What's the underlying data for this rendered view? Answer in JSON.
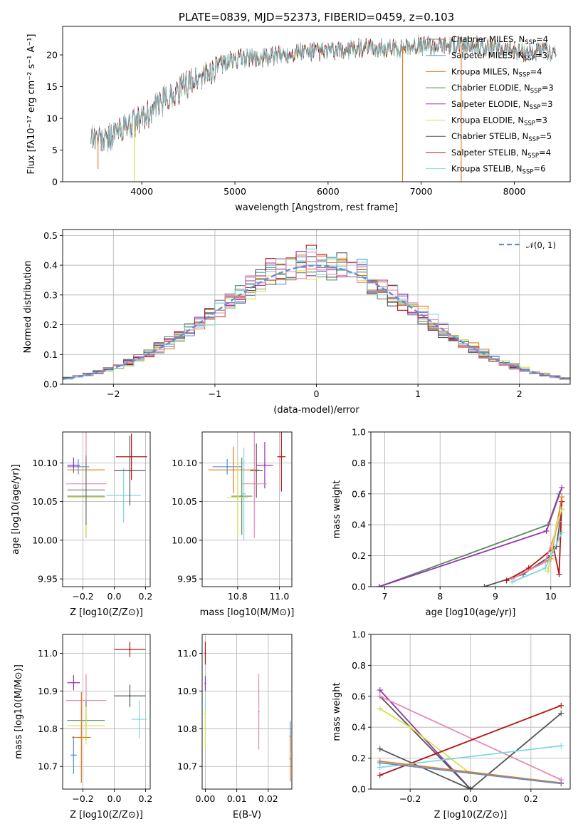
{
  "page_title": "PLATE=0839, MJD=52373, FIBERID=0459, z=0.103",
  "colors": {
    "chabrier_miles": "#808080",
    "salpeter_miles": "#5a8fd8",
    "kroupa_miles": "#e07b20",
    "chabrier_elodie": "#5a8a5a",
    "salpeter_elodie": "#9932b0",
    "kroupa_elodie": "#d8e050",
    "chabrier_stelib": "#555555",
    "salpeter_stelib": "#b01818",
    "kroupa_stelib": "#7fd8e0",
    "pink": "#e888b8",
    "n01": "#5a8fd8"
  },
  "chart_data": [
    {
      "id": "spectrum",
      "type": "line",
      "title": "PLATE=0839, MJD=52373, FIBERID=0459, z=0.103",
      "xlabel": "wavelength [Angstrom, rest frame]",
      "ylabel": "Flux [fλ10⁻¹⁷ erg cm⁻² s⁻¹ A⁻¹]",
      "xlim": [
        3150,
        8600
      ],
      "ylim": [
        0,
        24.5
      ],
      "xticks": [
        "4000",
        "5000",
        "6000",
        "7000",
        "8000"
      ],
      "yticks": [
        "0",
        "5",
        "10",
        "15",
        "20"
      ],
      "legend_position": "right",
      "legend": [
        "Chabrier MILES, N_SSP=4",
        "Salpeter MILES, N_SSP=3",
        "Kroupa MILES, N_SSP=4",
        "Chabrier ELODIE, N_SSP=3",
        "Salpeter ELODIE, N_SSP=3",
        "Kroupa ELODIE, N_SSP=3",
        "Chabrier STELIB, N_SSP=5",
        "Salpeter STELIB, N_SSP=4",
        "Kroupa STELIB, N_SSP=6"
      ],
      "legend_parts": [
        [
          "Chabrier MILES, N",
          "SSP",
          "=4"
        ],
        [
          "Salpeter MILES, N",
          "SSP",
          "=3"
        ],
        [
          "Kroupa MILES, N",
          "SSP",
          "=4"
        ],
        [
          "Chabrier ELODIE, N",
          "SSP",
          "=3"
        ],
        [
          "Salpeter ELODIE, N",
          "SSP",
          "=3"
        ],
        [
          "Kroupa ELODIE, N",
          "SSP",
          "=3"
        ],
        [
          "Chabrier STELIB, N",
          "SSP",
          "=5"
        ],
        [
          "Salpeter STELIB, N",
          "SSP",
          "=4"
        ],
        [
          "Kroupa STELIB, N",
          "SSP",
          "=6"
        ]
      ],
      "continuum_points": [
        [
          3450,
          7.5
        ],
        [
          3600,
          6.5
        ],
        [
          3800,
          8.5
        ],
        [
          3950,
          9.5
        ],
        [
          4100,
          11
        ],
        [
          4300,
          13.5
        ],
        [
          4500,
          15.5
        ],
        [
          4700,
          17
        ],
        [
          4900,
          19
        ],
        [
          5100,
          19.5
        ],
        [
          5300,
          19.5
        ],
        [
          5500,
          20
        ],
        [
          5700,
          20.5
        ],
        [
          5900,
          20.5
        ],
        [
          6100,
          20.5
        ],
        [
          6300,
          21
        ],
        [
          6500,
          21
        ],
        [
          6700,
          21
        ],
        [
          6900,
          21.5
        ],
        [
          7100,
          21.5
        ],
        [
          7300,
          21.5
        ],
        [
          7500,
          21.5
        ],
        [
          7700,
          21
        ],
        [
          7900,
          21
        ],
        [
          8100,
          20.5
        ],
        [
          8300,
          20.5
        ],
        [
          8450,
          20.5
        ]
      ],
      "drop_features": [
        {
          "series": "kroupa_elodie",
          "wavelength": 3920,
          "min_flux": 0
        },
        {
          "series": "kroupa_miles",
          "wavelength": 6800,
          "min_flux": 0
        },
        {
          "series": "kroupa_miles",
          "wavelength": 7430,
          "min_flux": 0
        },
        {
          "series": "kroupa_miles",
          "wavelength": 3530,
          "min_flux": 2
        }
      ]
    },
    {
      "id": "residual_hist",
      "type": "histogram",
      "xlabel": "(data-model)/error",
      "ylabel": "Normed distribution",
      "xlim": [
        -2.5,
        2.5
      ],
      "ylim": [
        0,
        0.52
      ],
      "xticks": [
        "−2",
        "−1",
        "0",
        "1",
        "2"
      ],
      "yticks": [
        "0.0",
        "0.1",
        "0.2",
        "0.3",
        "0.4",
        "0.5"
      ],
      "legend": [
        "𝒩(0, 1)"
      ],
      "legend_position": "top-right",
      "bin_width": 0.1,
      "reference_curve": "normal(0,1)"
    },
    {
      "id": "z_vs_age",
      "type": "scatter",
      "xlabel": "Z [log10(Z/Z⊙)]",
      "ylabel": "age [log10(age/yr)]",
      "xlim": [
        -0.33,
        0.23
      ],
      "ylim": [
        9.94,
        10.14
      ],
      "xticks": [
        "−0.2",
        "0.0",
        "0.2"
      ],
      "yticks": [
        "9.95",
        "10.00",
        "10.05",
        "10.10"
      ],
      "points": [
        {
          "color": "kroupa_stelib",
          "x": 0.06,
          "xerr": 0.11,
          "y": 10.058,
          "yerr": 0.035
        },
        {
          "color": "chabrier_stelib",
          "x": 0.1,
          "xerr": 0.1,
          "y": 10.09,
          "yerr": 0.045
        },
        {
          "color": "salpeter_stelib",
          "x": 0.11,
          "xerr": 0.1,
          "y": 10.108,
          "yerr": 0.03
        },
        {
          "color": "salpeter_miles",
          "x": -0.23,
          "xerr": 0.07,
          "y": 10.095,
          "yerr": 0.01
        },
        {
          "color": "salpeter_elodie",
          "x": -0.26,
          "xerr": 0.04,
          "y": 10.097,
          "yerr": 0.01
        },
        {
          "color": "kroupa_miles",
          "x": -0.18,
          "xerr": 0.12,
          "y": 10.091,
          "yerr": 0.01
        },
        {
          "color": "pink",
          "x": -0.18,
          "xerr": 0.13,
          "y": 10.073,
          "yerr": 0.07
        },
        {
          "color": "chabrier_elodie",
          "x": -0.18,
          "xerr": 0.12,
          "y": 10.057,
          "yerr": 0.05
        },
        {
          "color": "kroupa_elodie",
          "x": -0.18,
          "xerr": 0.12,
          "y": 10.055,
          "yerr": 0.05
        },
        {
          "color": "chabrier_miles",
          "x": -0.18,
          "xerr": 0.12,
          "y": 10.065,
          "yerr": 0.045
        }
      ]
    },
    {
      "id": "mass_vs_age",
      "type": "scatter",
      "xlabel": "mass [log10(M/M⊙)]",
      "ylabel": "",
      "xlim": [
        10.63,
        11.06
      ],
      "ylim": [
        9.94,
        10.14
      ],
      "xticks": [
        "10.8",
        "11.0"
      ],
      "yticks": [
        "9.95",
        "10.00",
        "10.05",
        "10.10"
      ],
      "points": [
        {
          "color": "salpeter_stelib",
          "x": 11.01,
          "xerr": 0.02,
          "y": 10.108,
          "yerr": 0.045
        },
        {
          "color": "salpeter_elodie",
          "x": 10.93,
          "xerr": 0.04,
          "y": 10.097,
          "yerr": 0.03
        },
        {
          "color": "chabrier_stelib",
          "x": 10.89,
          "xerr": 0.03,
          "y": 10.09,
          "yerr": 0.035
        },
        {
          "color": "pink",
          "x": 10.88,
          "xerr": 0.06,
          "y": 10.073,
          "yerr": 0.07
        },
        {
          "color": "salpeter_miles",
          "x": 10.75,
          "xerr": 0.07,
          "y": 10.095,
          "yerr": 0.01
        },
        {
          "color": "kroupa_miles",
          "x": 10.78,
          "xerr": 0.12,
          "y": 10.091,
          "yerr": 0.03
        },
        {
          "color": "chabrier_elodie",
          "x": 10.82,
          "xerr": 0.05,
          "y": 10.057,
          "yerr": 0.05
        },
        {
          "color": "kroupa_elodie",
          "x": 10.8,
          "xerr": 0.05,
          "y": 10.055,
          "yerr": 0.05
        },
        {
          "color": "kroupa_stelib",
          "x": 10.83,
          "xerr": 0.01,
          "y": 10.06,
          "yerr": 0.06
        }
      ]
    },
    {
      "id": "age_vs_weight",
      "type": "line",
      "xlabel": "age [log10(age/yr)]",
      "ylabel": "mass weight",
      "xlim": [
        6.75,
        10.35
      ],
      "ylim": [
        0,
        1.0
      ],
      "xticks": [
        "7",
        "8",
        "9",
        "10"
      ],
      "yticks": [
        "0.0",
        "0.2",
        "0.4",
        "0.6",
        "0.8",
        "1.0"
      ],
      "series": [
        {
          "color": "chabrier_elodie",
          "points": [
            [
              6.9,
              0.0
            ],
            [
              9.95,
              0.4
            ],
            [
              10.15,
              0.6
            ]
          ]
        },
        {
          "color": "salpeter_elodie",
          "points": [
            [
              6.9,
              0.0
            ],
            [
              9.92,
              0.36
            ],
            [
              10.2,
              0.64
            ]
          ]
        },
        {
          "color": "chabrier_stelib",
          "points": [
            [
              8.8,
              0.0
            ],
            [
              9.5,
              0.08
            ],
            [
              10.0,
              0.2
            ],
            [
              10.1,
              0.26
            ],
            [
              10.2,
              0.5
            ]
          ]
        },
        {
          "color": "salpeter_stelib",
          "points": [
            [
              9.2,
              0.04
            ],
            [
              9.6,
              0.12
            ],
            [
              10.05,
              0.25
            ],
            [
              10.15,
              0.08
            ],
            [
              10.2,
              0.55
            ]
          ]
        },
        {
          "color": "kroupa_miles",
          "points": [
            [
              9.3,
              0.05
            ],
            [
              10.0,
              0.18
            ],
            [
              10.2,
              0.58
            ]
          ]
        },
        {
          "color": "pink",
          "points": [
            [
              9.3,
              0.05
            ],
            [
              9.9,
              0.16
            ],
            [
              10.15,
              0.42
            ]
          ]
        },
        {
          "color": "kroupa_elodie",
          "points": [
            [
              9.95,
              0.1
            ],
            [
              10.1,
              0.4
            ],
            [
              10.2,
              0.5
            ]
          ]
        },
        {
          "color": "kroupa_stelib",
          "points": [
            [
              9.3,
              0.03
            ],
            [
              9.9,
              0.12
            ],
            [
              10.2,
              0.35
            ]
          ]
        }
      ]
    },
    {
      "id": "z_vs_mass",
      "type": "scatter",
      "xlabel": "Z [log10(Z/Z⊙)]",
      "ylabel": "mass [log10(M/M⊙)]",
      "xlim": [
        -0.33,
        0.23
      ],
      "ylim": [
        10.64,
        11.05
      ],
      "xticks": [
        "−0.2",
        "0.0",
        "0.2"
      ],
      "yticks": [
        "10.7",
        "10.8",
        "10.9",
        "11.0"
      ],
      "points": [
        {
          "color": "salpeter_stelib",
          "x": 0.1,
          "xerr": 0.1,
          "y": 11.01,
          "yerr": 0.02
        },
        {
          "color": "chabrier_stelib",
          "x": 0.1,
          "xerr": 0.1,
          "y": 10.887,
          "yerr": 0.03
        },
        {
          "color": "kroupa_stelib",
          "x": 0.16,
          "xerr": 0.05,
          "y": 10.825,
          "yerr": 0.05
        },
        {
          "color": "salpeter_elodie",
          "x": -0.26,
          "xerr": 0.04,
          "y": 10.922,
          "yerr": 0.02
        },
        {
          "color": "pink",
          "x": -0.18,
          "xerr": 0.13,
          "y": 10.875,
          "yerr": 0.07
        },
        {
          "color": "chabrier_elodie",
          "x": -0.18,
          "xerr": 0.12,
          "y": 10.822,
          "yerr": 0.05
        },
        {
          "color": "kroupa_elodie",
          "x": -0.18,
          "xerr": 0.12,
          "y": 10.808,
          "yerr": 0.05
        },
        {
          "color": "kroupa_miles",
          "x": -0.21,
          "xerr": 0.06,
          "y": 10.777,
          "yerr": 0.12
        },
        {
          "color": "salpeter_miles",
          "x": -0.26,
          "xerr": 0.02,
          "y": 10.73,
          "yerr": 0.05
        }
      ]
    },
    {
      "id": "ebv_vs_mass",
      "type": "scatter",
      "xlabel": "E(B-V)",
      "ylabel": "",
      "xlim": [
        -0.001,
        0.0275
      ],
      "ylim": [
        10.64,
        11.05
      ],
      "xticks": [
        "0.00",
        "0.01",
        "0.02"
      ],
      "yticks": [
        "10.7",
        "10.8",
        "10.9",
        "11.0"
      ],
      "points": [
        {
          "color": "salpeter_stelib",
          "x": 0.0,
          "y": 11.0,
          "yerr": 0.03
        },
        {
          "color": "salpeter_elodie",
          "x": 0.0,
          "y": 10.92,
          "yerr": 0.02
        },
        {
          "color": "kroupa_stelib",
          "x": 0.0,
          "y": 10.84,
          "yerr": 0.04
        },
        {
          "color": "kroupa_elodie",
          "x": 0.0,
          "y": 10.8,
          "yerr": 0.05
        },
        {
          "color": "pink",
          "x": 0.017,
          "y": 10.845,
          "yerr": 0.1
        },
        {
          "color": "salpeter_miles",
          "x": 0.027,
          "y": 10.78,
          "yerr": 0.04
        },
        {
          "color": "kroupa_miles",
          "x": 0.027,
          "y": 10.72,
          "yerr": 0.06
        }
      ]
    },
    {
      "id": "z_vs_weight",
      "type": "line",
      "xlabel": "Z [log10(Z/Z⊙)]",
      "ylabel": "mass weight",
      "xlim": [
        -0.33,
        0.33
      ],
      "ylim": [
        0,
        1.0
      ],
      "xticks": [
        "−0.2",
        "0.0",
        "0.2"
      ],
      "yticks": [
        "0.0",
        "0.2",
        "0.4",
        "0.6",
        "0.8",
        "1.0"
      ],
      "series": [
        {
          "color": "salpeter_elodie",
          "points": [
            [
              -0.3,
              0.64
            ],
            [
              0.0,
              0.0
            ]
          ]
        },
        {
          "color": "chabrier_stelib",
          "points": [
            [
              -0.3,
              0.6
            ],
            [
              0.0,
              0.0
            ]
          ]
        },
        {
          "color": "pink",
          "points": [
            [
              -0.3,
              0.6
            ],
            [
              0.3,
              0.06
            ]
          ]
        },
        {
          "color": "kroupa_elodie",
          "points": [
            [
              -0.3,
              0.52
            ],
            [
              -0.2,
              0.4
            ],
            [
              0.0,
              0.1
            ]
          ]
        },
        {
          "color": "chabrier_stelib",
          "points": [
            [
              -0.3,
              0.26
            ],
            [
              0.0,
              0.0
            ],
            [
              0.3,
              0.49
            ]
          ]
        },
        {
          "color": "salpeter_stelib",
          "points": [
            [
              -0.3,
              0.09
            ],
            [
              0.3,
              0.54
            ]
          ]
        },
        {
          "color": "kroupa_stelib",
          "points": [
            [
              -0.3,
              0.14
            ],
            [
              0.3,
              0.28
            ]
          ]
        },
        {
          "color": "kroupa_miles",
          "points": [
            [
              -0.3,
              0.18
            ],
            [
              0.3,
              0.04
            ]
          ]
        },
        {
          "color": "salpeter_miles",
          "points": [
            [
              -0.3,
              0.17
            ],
            [
              0.3,
              0.035
            ]
          ]
        }
      ]
    }
  ]
}
